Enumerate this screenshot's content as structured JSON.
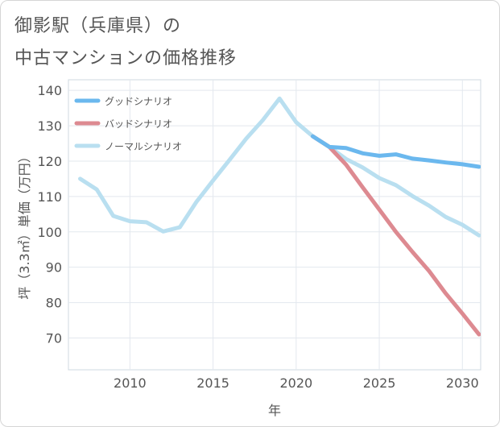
{
  "title_line1": "御影駅（兵庫県）の",
  "title_line2": "中古マンションの価格推移",
  "chart_data": {
    "type": "line",
    "xlabel": "年",
    "ylabel": "坪（3.3㎡）単価（万円）",
    "xlim": [
      2006.3,
      2031.1
    ],
    "ylim": [
      61,
      143
    ],
    "xticks": [
      2010,
      2015,
      2020,
      2025,
      2030
    ],
    "yticks": [
      70,
      80,
      90,
      100,
      110,
      120,
      130,
      140
    ],
    "legend_position": "top-left",
    "series": [
      {
        "name": "グッドシナリオ",
        "color": "#6bb8ee",
        "x": [
          2021,
          2022,
          2023,
          2024,
          2025,
          2026,
          2027,
          2028,
          2029,
          2030,
          2031
        ],
        "values": [
          127,
          124,
          123.7,
          122.2,
          121.5,
          121.9,
          120.7,
          120.2,
          119.6,
          119.1,
          118.4
        ]
      },
      {
        "name": "バッドシナリオ",
        "color": "#dd8a91",
        "x": [
          2021,
          2022,
          2023,
          2024,
          2025,
          2026,
          2027,
          2028,
          2029,
          2030,
          2031
        ],
        "values": [
          127,
          124,
          119,
          112.6,
          106.3,
          100,
          94.3,
          88.9,
          82.6,
          76.9,
          71
        ]
      },
      {
        "name": "ノーマルシナリオ",
        "color": "#b9dff0",
        "x": [
          2007,
          2008,
          2009,
          2010,
          2011,
          2012,
          2013,
          2014,
          2015,
          2016,
          2017,
          2018,
          2019,
          2020,
          2021,
          2022,
          2023,
          2024,
          2025,
          2026,
          2027,
          2028,
          2029,
          2030,
          2031
        ],
        "values": [
          115,
          112,
          104.5,
          103,
          102.7,
          100.1,
          101.3,
          108.5,
          114.5,
          120.4,
          126.4,
          131.6,
          137.7,
          131,
          127,
          124,
          120.6,
          118.2,
          115.2,
          113.2,
          110.1,
          107.4,
          104.2,
          102,
          99
        ]
      }
    ]
  }
}
